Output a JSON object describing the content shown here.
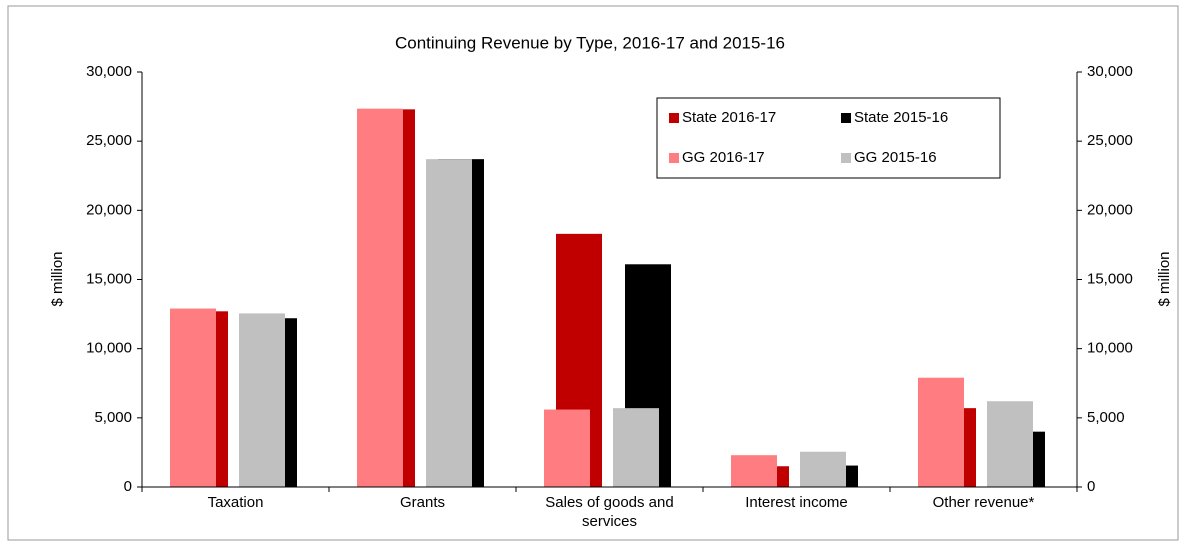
{
  "chart_data": {
    "type": "bar",
    "title": "Continuing Revenue by Type, 2016-17 and 2015-16",
    "y_label": "$ million",
    "y2_label": "$ million",
    "categories": [
      "Taxation",
      "Grants",
      "Sales of goods and services",
      "Interest income",
      "Other revenue*"
    ],
    "series": [
      {
        "name": "State 2016-17",
        "color": "#c00000",
        "values": [
          12700,
          27300,
          18300,
          1500,
          5700
        ]
      },
      {
        "name": "State 2015-16",
        "color": "#000000",
        "values": [
          12200,
          23700,
          16100,
          1550,
          4000
        ]
      },
      {
        "name": "GG 2016-17",
        "color": "#ff7c80",
        "values": [
          12900,
          27350,
          5600,
          2300,
          7900
        ]
      },
      {
        "name": "GG 2015-16",
        "color": "#c0c0c0",
        "values": [
          12550,
          23700,
          5700,
          2550,
          6200
        ]
      }
    ],
    "ylim": [
      0,
      30000
    ],
    "yticks": [
      0,
      {
        "value": 5000,
        "label": "5,000"
      },
      {
        "value": 10000,
        "label": "10,000"
      },
      {
        "value": 15000,
        "label": "15,000"
      },
      {
        "value": 20000,
        "label": "20,000"
      },
      {
        "value": 25000,
        "label": "25,000"
      },
      {
        "value": 30000,
        "label": "30,000"
      }
    ],
    "y2lim": [
      0,
      30000
    ],
    "y2ticks": [
      0,
      {
        "value": 5000,
        "label": "5,000"
      },
      {
        "value": 10000,
        "label": "10,000"
      },
      {
        "value": 15000,
        "label": "15,000"
      },
      {
        "value": 20000,
        "label": "20,000"
      },
      {
        "value": 25000,
        "label": "25,000"
      },
      {
        "value": 30000,
        "label": "30,000"
      }
    ],
    "grid": false,
    "legend": "upper right"
  }
}
